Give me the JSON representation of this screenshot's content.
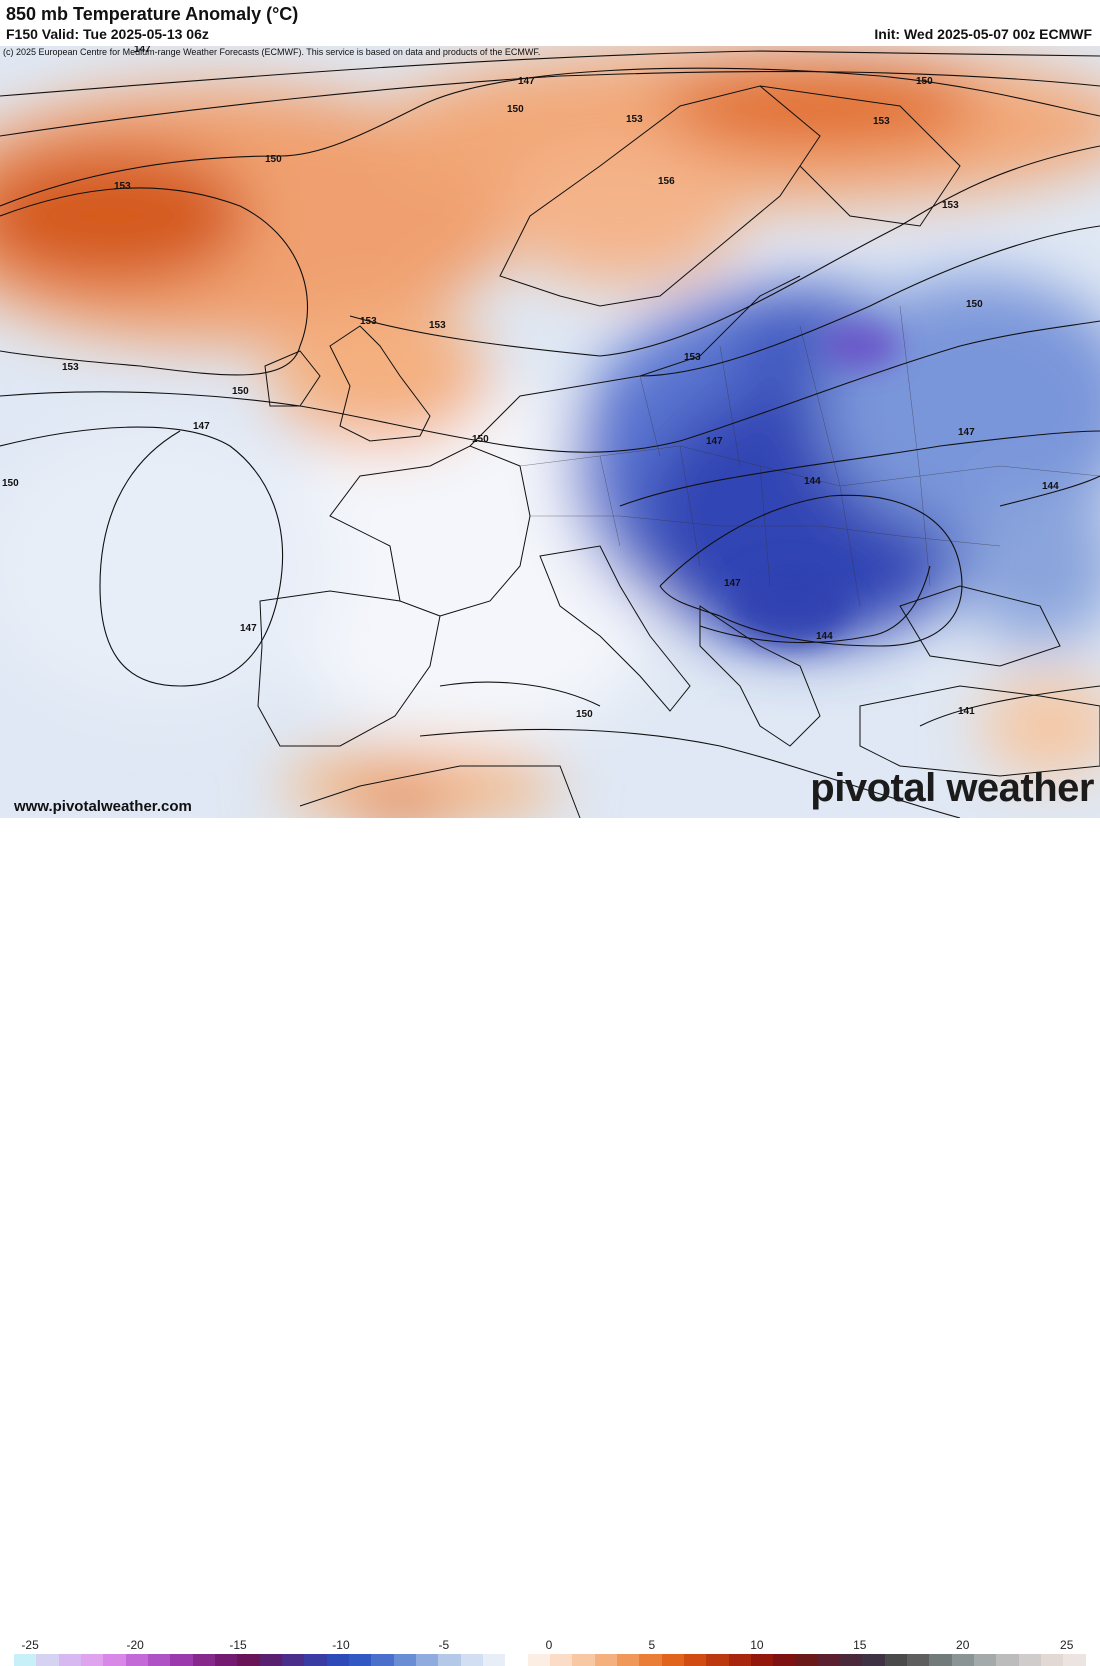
{
  "header": {
    "title": "850 mb Temperature Anomaly (°C)",
    "valid": "F150 Valid: Tue 2025-05-13 06z",
    "init": "Init: Wed 2025-05-07 00z ECMWF",
    "copyright": "(c) 2025 European Centre for Medium-range Weather Forecasts (ECMWF). This service is based on data and products of the ECMWF."
  },
  "footer": {
    "website": "www.pivotalweather.com",
    "brand": "pivotal weather"
  },
  "colorbar": {
    "ticks": [
      "-25",
      "-20",
      "-15",
      "-10",
      "-5",
      "0",
      "5",
      "10",
      "15",
      "20",
      "25"
    ],
    "colors": [
      "#c8f0f8",
      "#d6d2f2",
      "#d8b8f0",
      "#e0a4ee",
      "#d888e6",
      "#c46ad8",
      "#ae52c6",
      "#9a3aac",
      "#86288c",
      "#741a70",
      "#6a1458",
      "#5a2070",
      "#4a2e8a",
      "#3a3ca4",
      "#2e4ab8",
      "#3258c4",
      "#4a70cc",
      "#6a8ed6",
      "#90acde",
      "#b4c8e8",
      "#d2def2",
      "#e8eef8",
      "#ffffff",
      "#fdeee4",
      "#fbdcc6",
      "#f8c8a4",
      "#f4b07e",
      "#f0985a",
      "#ea7e38",
      "#e0641e",
      "#d04c12",
      "#bc380e",
      "#a8260e",
      "#92180e",
      "#7e1212",
      "#6a1818",
      "#5a2030",
      "#4a2a3a",
      "#3e3244",
      "#4a4a4a",
      "#5e5e5e",
      "#727a7a",
      "#8a9494",
      "#a4aaaa",
      "#bcbcbc",
      "#d0cccc",
      "#e2d8d4",
      "#ece4e0"
    ]
  },
  "map": {
    "contours": [
      {
        "label": "147"
      },
      {
        "label": "150"
      },
      {
        "label": "153"
      },
      {
        "label": "156"
      },
      {
        "label": "144"
      },
      {
        "label": "141"
      }
    ],
    "contour_labels": [
      "147",
      "147",
      "150",
      "150",
      "153",
      "153",
      "156",
      "153",
      "153",
      "150",
      "153",
      "150",
      "153",
      "150",
      "147",
      "147",
      "147",
      "150",
      "150",
      "147",
      "144",
      "144",
      "147",
      "144",
      "141",
      "150"
    ]
  }
}
